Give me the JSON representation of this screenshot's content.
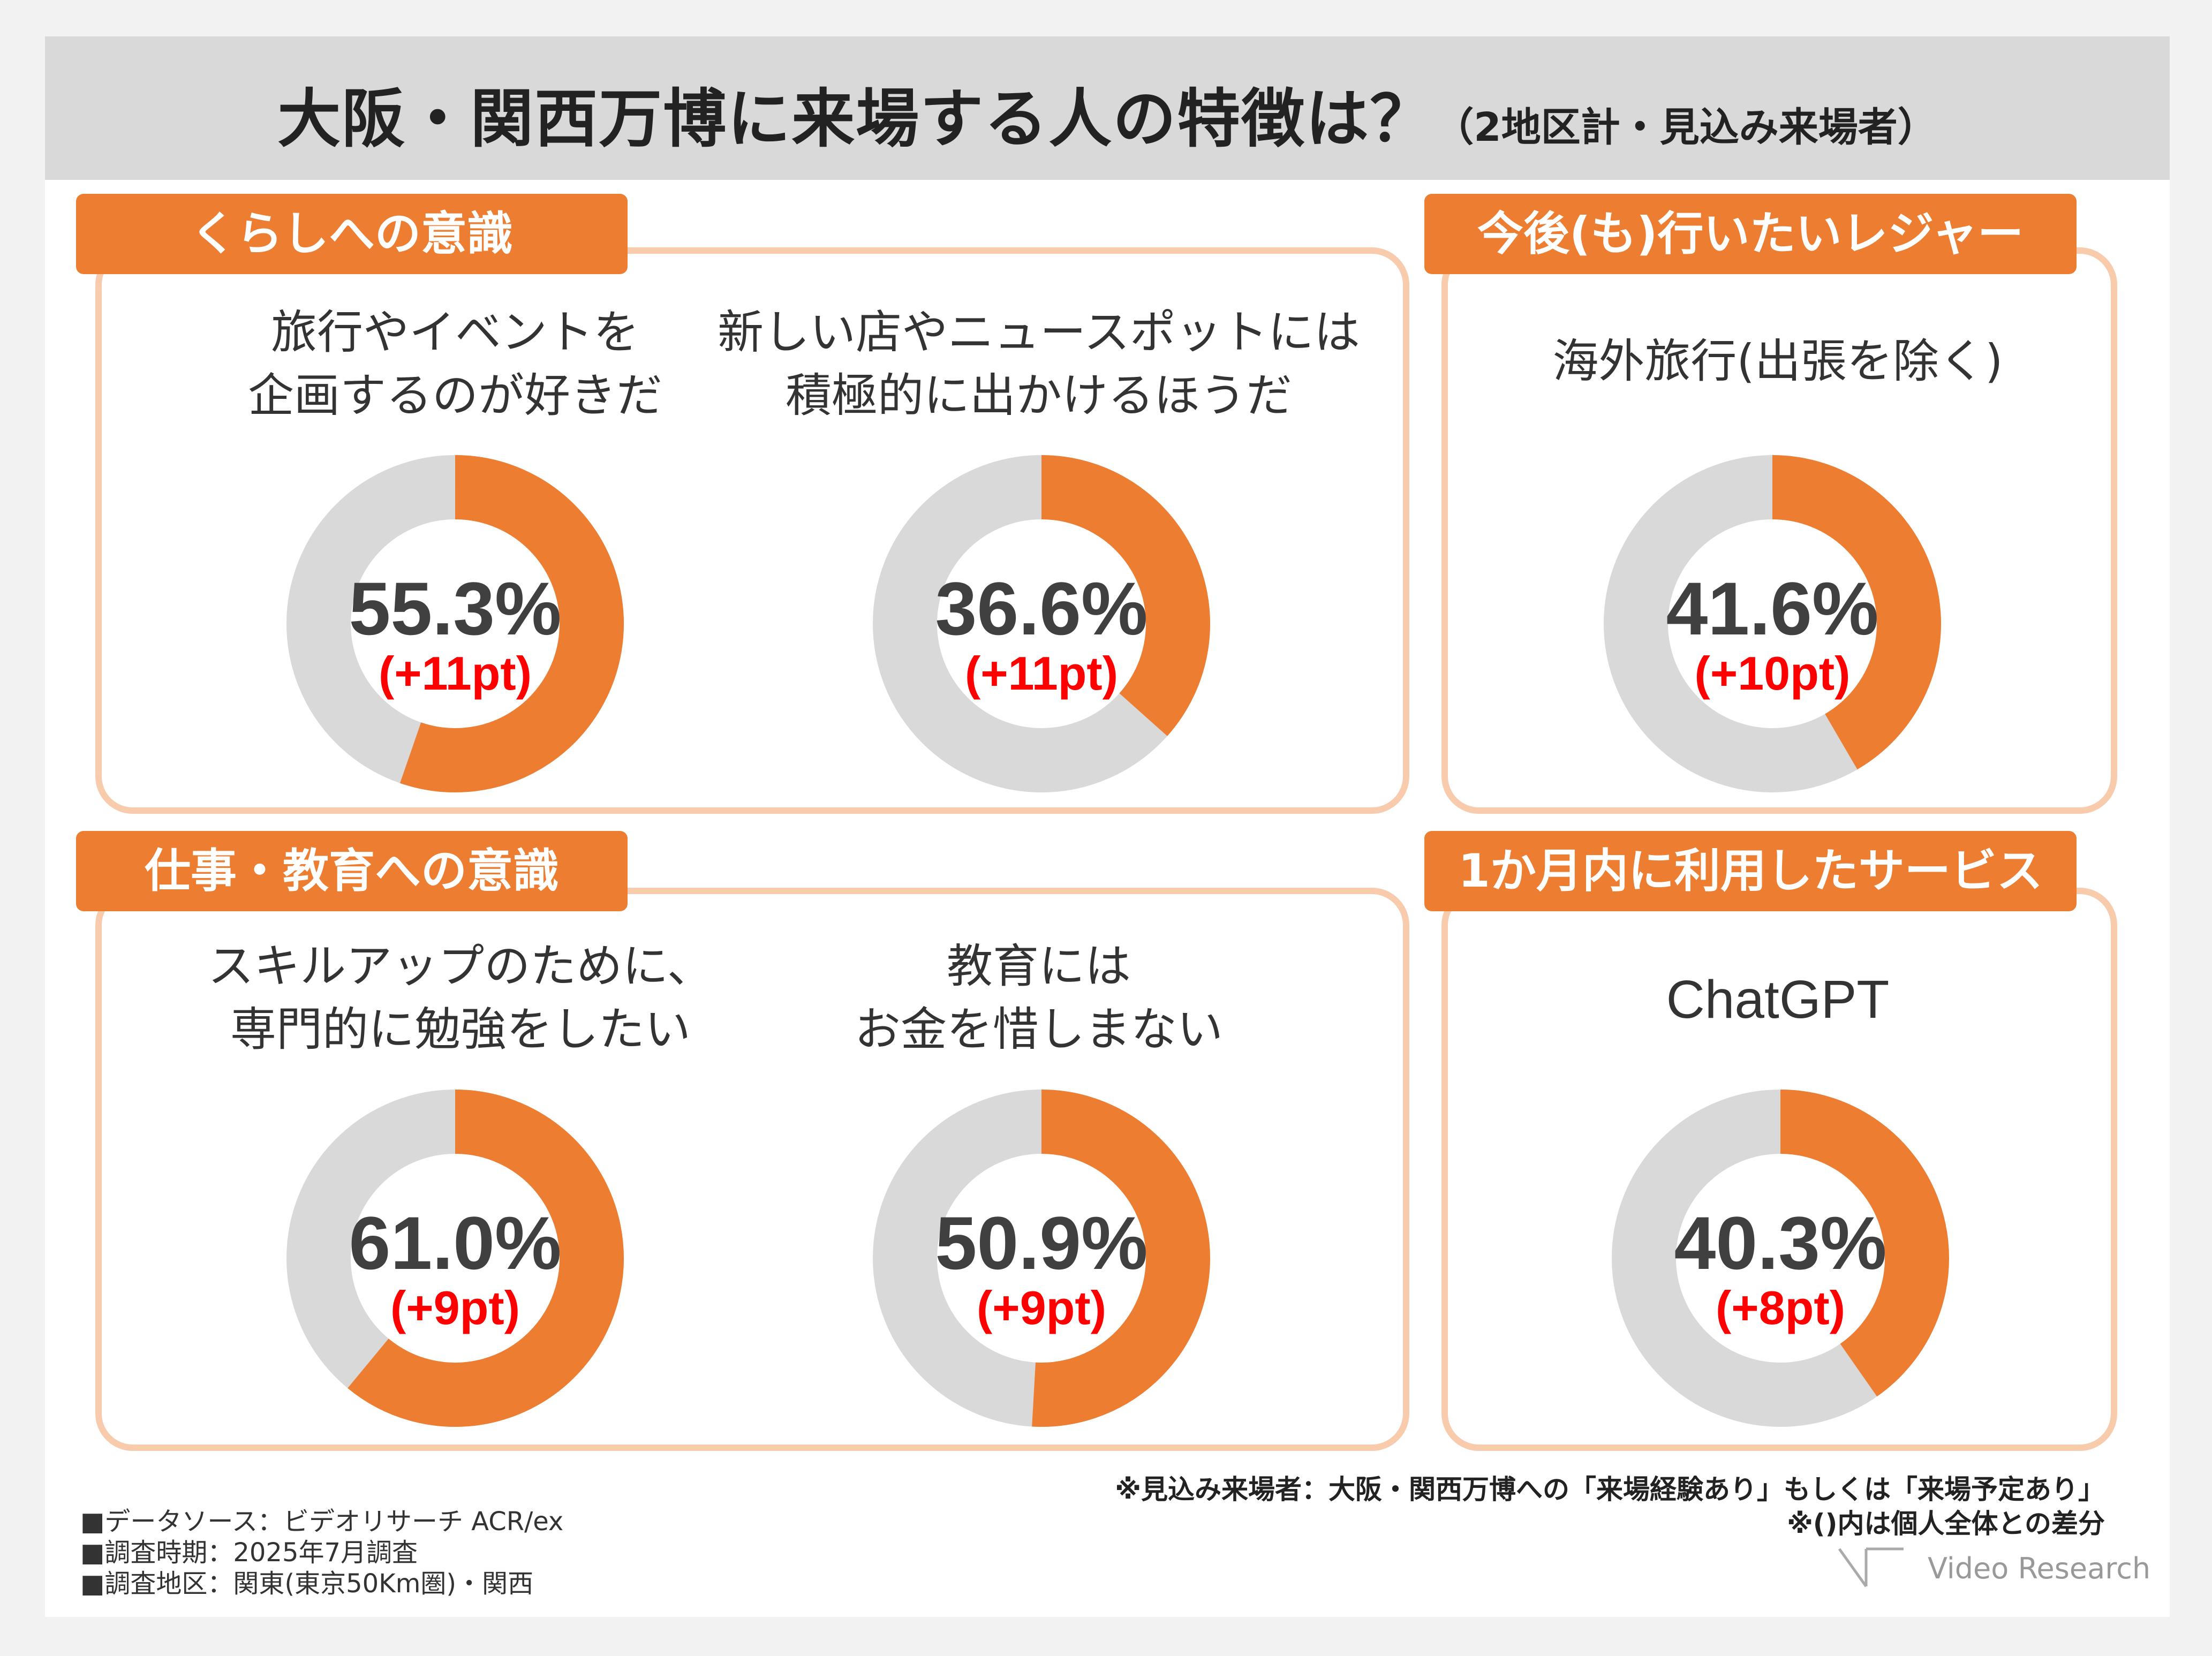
{
  "header": {
    "title": "大阪・関西万博に来場する人の特徴は？",
    "subtitle": "（2地区計・見込み来場者）"
  },
  "sections": {
    "kurashi": "くらしへの意識",
    "leisure": "今後(も)行いたいレジャー",
    "shigoto": "仕事・教育への意識",
    "service": "1か月内に利用したサービス"
  },
  "labels": {
    "c1_line1": "旅行やイベントを",
    "c1_line2": "企画するのが好きだ",
    "c2_line1": "新しい店やニュースポットには",
    "c2_line2": "積極的に出かけるほうだ",
    "c3_line1": "海外旅行(出張を除く)",
    "c4_line1": "スキルアップのために、",
    "c4_line2": "専門的に勉強をしたい",
    "c5_line1": "教育には",
    "c5_line2": "お金を惜しまない",
    "c6_line1": "ChatGPT"
  },
  "chart_data": [
    {
      "type": "pie",
      "category": "旅行やイベントを企画するのが好きだ",
      "value": 55.3,
      "value_label": "55.3%",
      "diff_label": "(+11pt)"
    },
    {
      "type": "pie",
      "category": "新しい店やニュースポットには積極的に出かけるほうだ",
      "value": 36.6,
      "value_label": "36.6%",
      "diff_label": "(+11pt)"
    },
    {
      "type": "pie",
      "category": "海外旅行(出張を除く)",
      "value": 41.6,
      "value_label": "41.6%",
      "diff_label": "(+10pt)"
    },
    {
      "type": "pie",
      "category": "スキルアップのために、専門的に勉強をしたい",
      "value": 61.0,
      "value_label": "61.0%",
      "diff_label": "(+9pt)"
    },
    {
      "type": "pie",
      "category": "教育にはお金を惜しまない",
      "value": 50.9,
      "value_label": "50.9%",
      "diff_label": "(+9pt)"
    },
    {
      "type": "pie",
      "category": "ChatGPT",
      "value": 40.3,
      "value_label": "40.3%",
      "diff_label": "(+8pt)"
    }
  ],
  "colors": {
    "accent": "#ed7d31",
    "remainder": "#d9d9d9",
    "diff": "#ff0000",
    "border": "#f8cbad"
  },
  "notes": {
    "line1": "※見込み来場者：大阪・関西万博への「来場経験あり」もしくは「来場予定あり」",
    "line2": "※()内は個人全体との差分"
  },
  "source": {
    "line1": "■データソース：ビデオリサーチ ACR/ex",
    "line2": "■調査時期：2025年7月調査",
    "line3": "■調査地区：関東(東京50Km圏)・関西"
  },
  "logo": "Video Research"
}
